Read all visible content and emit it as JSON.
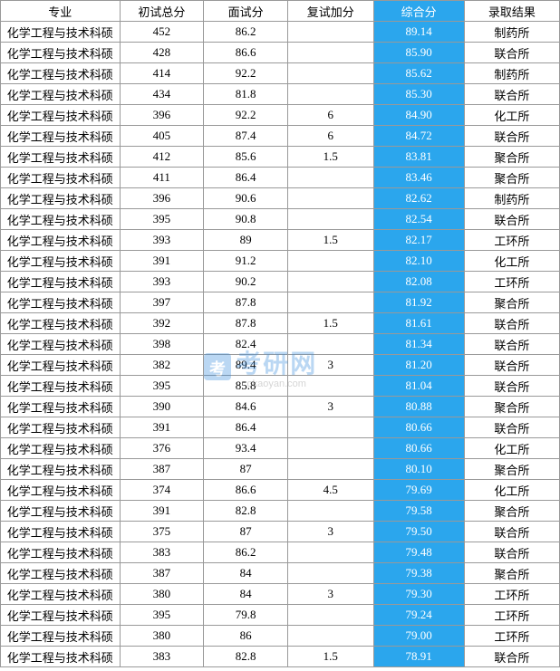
{
  "table": {
    "headers": [
      "专业",
      "初试总分",
      "面试分",
      "复试加分",
      "综合分",
      "录取结果"
    ],
    "highlight_column_index": 4,
    "highlight_bg": "#2ba6ed",
    "highlight_fg": "#ffffff",
    "border_color": "#999999",
    "rows": [
      [
        "化学工程与技术科硕",
        "452",
        "86.2",
        "",
        "89.14",
        "制药所"
      ],
      [
        "化学工程与技术科硕",
        "428",
        "86.6",
        "",
        "85.90",
        "联合所"
      ],
      [
        "化学工程与技术科硕",
        "414",
        "92.2",
        "",
        "85.62",
        "制药所"
      ],
      [
        "化学工程与技术科硕",
        "434",
        "81.8",
        "",
        "85.30",
        "联合所"
      ],
      [
        "化学工程与技术科硕",
        "396",
        "92.2",
        "6",
        "84.90",
        "化工所"
      ],
      [
        "化学工程与技术科硕",
        "405",
        "87.4",
        "6",
        "84.72",
        "联合所"
      ],
      [
        "化学工程与技术科硕",
        "412",
        "85.6",
        "1.5",
        "83.81",
        "聚合所"
      ],
      [
        "化学工程与技术科硕",
        "411",
        "86.4",
        "",
        "83.46",
        "聚合所"
      ],
      [
        "化学工程与技术科硕",
        "396",
        "90.6",
        "",
        "82.62",
        "制药所"
      ],
      [
        "化学工程与技术科硕",
        "395",
        "90.8",
        "",
        "82.54",
        "联合所"
      ],
      [
        "化学工程与技术科硕",
        "393",
        "89",
        "1.5",
        "82.17",
        "工环所"
      ],
      [
        "化学工程与技术科硕",
        "391",
        "91.2",
        "",
        "82.10",
        "化工所"
      ],
      [
        "化学工程与技术科硕",
        "393",
        "90.2",
        "",
        "82.08",
        "工环所"
      ],
      [
        "化学工程与技术科硕",
        "397",
        "87.8",
        "",
        "81.92",
        "聚合所"
      ],
      [
        "化学工程与技术科硕",
        "392",
        "87.8",
        "1.5",
        "81.61",
        "联合所"
      ],
      [
        "化学工程与技术科硕",
        "398",
        "82.4",
        "",
        "81.34",
        "联合所"
      ],
      [
        "化学工程与技术科硕",
        "382",
        "89.4",
        "3",
        "81.20",
        "联合所"
      ],
      [
        "化学工程与技术科硕",
        "395",
        "85.8",
        "",
        "81.04",
        "联合所"
      ],
      [
        "化学工程与技术科硕",
        "390",
        "84.6",
        "3",
        "80.88",
        "聚合所"
      ],
      [
        "化学工程与技术科硕",
        "391",
        "86.4",
        "",
        "80.66",
        "联合所"
      ],
      [
        "化学工程与技术科硕",
        "376",
        "93.4",
        "",
        "80.66",
        "化工所"
      ],
      [
        "化学工程与技术科硕",
        "387",
        "87",
        "",
        "80.10",
        "聚合所"
      ],
      [
        "化学工程与技术科硕",
        "374",
        "86.6",
        "4.5",
        "79.69",
        "化工所"
      ],
      [
        "化学工程与技术科硕",
        "391",
        "82.8",
        "",
        "79.58",
        "聚合所"
      ],
      [
        "化学工程与技术科硕",
        "375",
        "87",
        "3",
        "79.50",
        "联合所"
      ],
      [
        "化学工程与技术科硕",
        "383",
        "86.2",
        "",
        "79.48",
        "联合所"
      ],
      [
        "化学工程与技术科硕",
        "387",
        "84",
        "",
        "79.38",
        "聚合所"
      ],
      [
        "化学工程与技术科硕",
        "380",
        "84",
        "3",
        "79.30",
        "工环所"
      ],
      [
        "化学工程与技术科硕",
        "395",
        "79.8",
        "",
        "79.24",
        "工环所"
      ],
      [
        "化学工程与技术科硕",
        "380",
        "86",
        "",
        "79.00",
        "工环所"
      ],
      [
        "化学工程与技术科硕",
        "383",
        "82.8",
        "1.5",
        "78.91",
        "联合所"
      ]
    ]
  },
  "watermark": {
    "main_text": "考研网",
    "sub_text": "okaoyan.com",
    "color": "#3b8ede"
  }
}
